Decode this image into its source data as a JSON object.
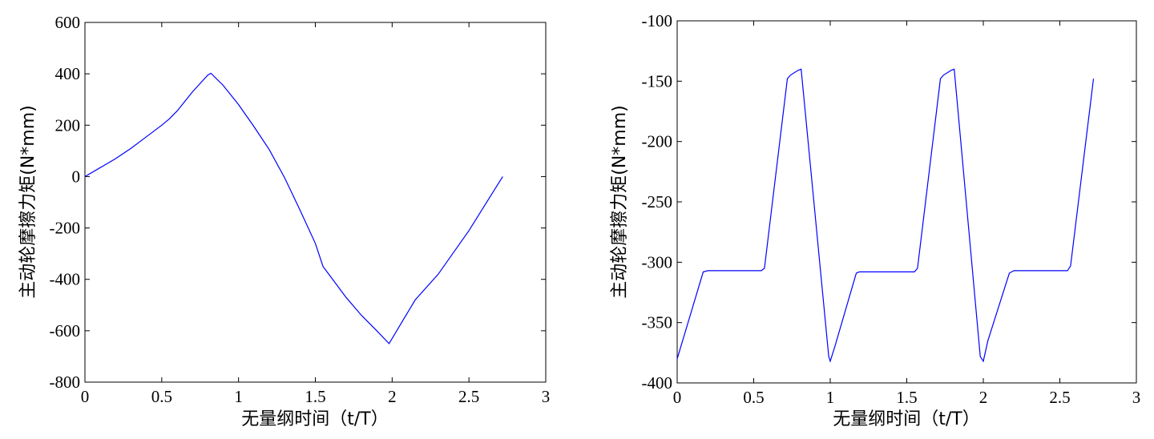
{
  "chart_data": [
    {
      "type": "line",
      "xlabel": "无量纲时间（t/T）",
      "ylabel": "主动轮摩擦力矩(N*mm)",
      "xlim": [
        0,
        3
      ],
      "ylim": [
        -800,
        600
      ],
      "xticks": [
        0,
        0.5,
        1,
        1.5,
        2,
        2.5,
        3
      ],
      "xtick_labels": [
        "0",
        "0.5",
        "1",
        "1.5",
        "2",
        "2.5",
        "3"
      ],
      "yticks": [
        -800,
        -600,
        -400,
        -200,
        0,
        200,
        400,
        600
      ],
      "ytick_labels": [
        "-800",
        "-600",
        "-400",
        "-200",
        "0",
        "200",
        "400",
        "600"
      ],
      "grid": false,
      "line_color": "#0000ff",
      "series": [
        {
          "x": [
            0,
            0.1,
            0.2,
            0.3,
            0.4,
            0.5,
            0.55,
            0.6,
            0.7,
            0.8,
            0.82,
            0.9,
            1.0,
            1.1,
            1.2,
            1.3,
            1.4,
            1.5,
            1.55,
            1.6,
            1.7,
            1.8,
            1.9,
            1.98,
            2.05,
            2.15,
            2.3,
            2.5,
            2.72
          ],
          "y": [
            0,
            35,
            70,
            110,
            155,
            200,
            225,
            255,
            330,
            395,
            402,
            355,
            280,
            195,
            105,
            -5,
            -130,
            -260,
            -350,
            -390,
            -470,
            -540,
            -600,
            -650,
            -580,
            -480,
            -380,
            -210,
            0
          ]
        }
      ]
    },
    {
      "type": "line",
      "xlabel": "无量纲时间（t/T）",
      "ylabel": "主动轮摩擦力矩(N*mm)",
      "xlim": [
        0,
        3
      ],
      "ylim": [
        -400,
        -100
      ],
      "xticks": [
        0,
        0.5,
        1,
        1.5,
        2,
        2.5,
        3
      ],
      "xtick_labels": [
        "0",
        "0.5",
        "1",
        "1.5",
        "2",
        "2.5",
        "3"
      ],
      "yticks": [
        -400,
        -350,
        -300,
        -250,
        -200,
        -150,
        -100
      ],
      "ytick_labels": [
        "-400",
        "-350",
        "-300",
        "-250",
        "-200",
        "-150",
        "-100"
      ],
      "grid": false,
      "line_color": "#0000ff",
      "series": [
        {
          "x": [
            0,
            0.17,
            0.2,
            0.55,
            0.57,
            0.72,
            0.74,
            0.79,
            0.81,
            0.99,
            1.0,
            1.03,
            1.17,
            1.19,
            1.55,
            1.57,
            1.72,
            1.74,
            1.79,
            1.81,
            1.98,
            2.0,
            2.03,
            2.17,
            2.2,
            2.55,
            2.57,
            2.72
          ],
          "y": [
            -380,
            -308,
            -307,
            -307,
            -305,
            -148,
            -145,
            -141,
            -140,
            -378,
            -382,
            -370,
            -309,
            -308,
            -308,
            -305,
            -148,
            -145,
            -141,
            -140,
            -378,
            -382,
            -365,
            -309,
            -307,
            -307,
            -303,
            -148
          ]
        }
      ]
    }
  ]
}
